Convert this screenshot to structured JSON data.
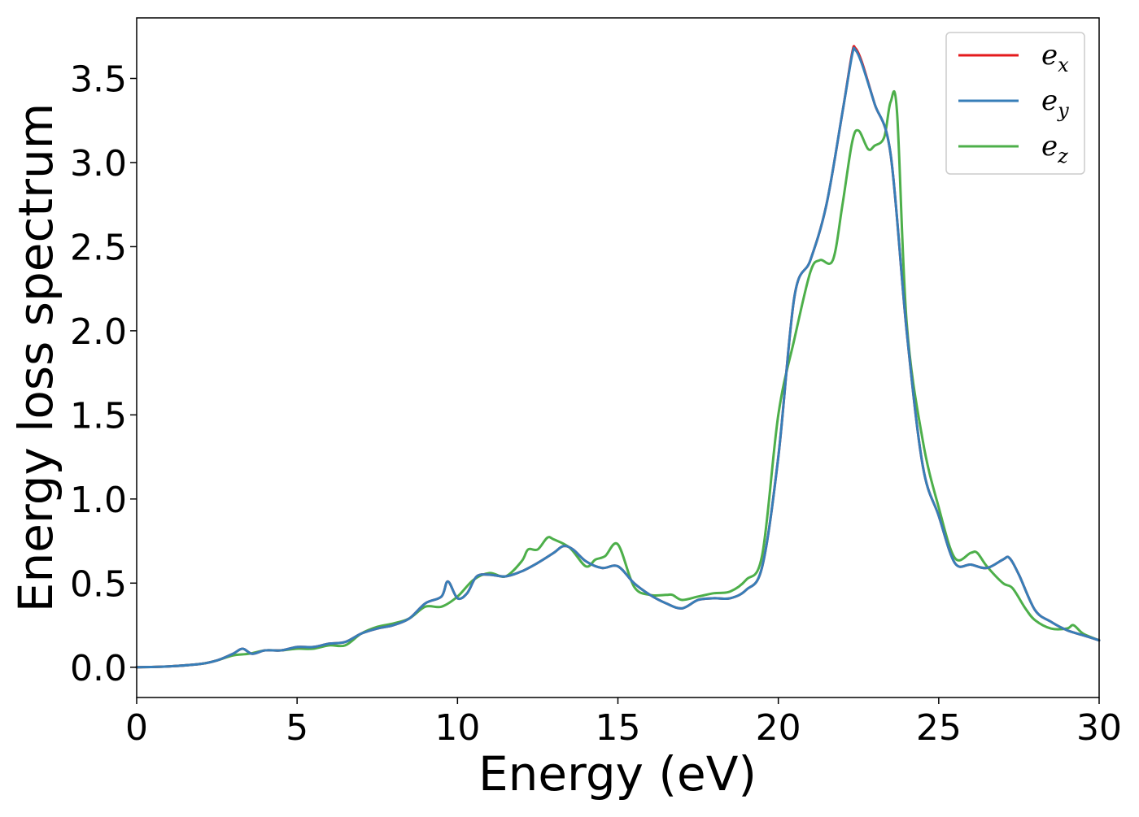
{
  "chart_data": {
    "type": "line",
    "title": "",
    "xlabel": "Energy (eV)",
    "ylabel": "Energy loss spectrum",
    "xlim": [
      0,
      30
    ],
    "ylim": [
      -0.18,
      3.86
    ],
    "xticks": [
      0,
      5,
      10,
      15,
      20,
      25,
      30
    ],
    "xtick_labels": [
      "0",
      "5",
      "10",
      "15",
      "20",
      "25",
      "30"
    ],
    "yticks": [
      0.0,
      0.5,
      1.0,
      1.5,
      2.0,
      2.5,
      3.0,
      3.5
    ],
    "ytick_labels": [
      "0.0",
      "0.5",
      "1.0",
      "1.5",
      "2.0",
      "2.5",
      "3.0",
      "3.5"
    ],
    "grid": false,
    "legend_position": "top-right",
    "series": [
      {
        "name": "e_x",
        "legend_base": "e",
        "legend_sub": "x",
        "color": "#e41a1c",
        "x": [
          0,
          1,
          2,
          2.5,
          3,
          3.3,
          3.6,
          4,
          4.5,
          5,
          5.5,
          6,
          6.5,
          7,
          7.5,
          8,
          8.5,
          9,
          9.5,
          9.7,
          10,
          10.3,
          10.6,
          11,
          11.5,
          12,
          12.5,
          13,
          13.3,
          13.6,
          14,
          14.5,
          15,
          15.5,
          16,
          16.5,
          17,
          17.5,
          18,
          18.5,
          19,
          19.5,
          20,
          20.5,
          21,
          21.5,
          22,
          22.3,
          22.4,
          22.6,
          23,
          23.5,
          24,
          24.5,
          25,
          25.5,
          26,
          26.5,
          27,
          27.2,
          27.5,
          28,
          28.5,
          29,
          29.5,
          30
        ],
        "y": [
          0,
          0.005,
          0.02,
          0.04,
          0.08,
          0.11,
          0.08,
          0.1,
          0.1,
          0.12,
          0.12,
          0.14,
          0.15,
          0.2,
          0.23,
          0.25,
          0.29,
          0.38,
          0.42,
          0.51,
          0.41,
          0.44,
          0.54,
          0.55,
          0.54,
          0.57,
          0.62,
          0.68,
          0.72,
          0.7,
          0.63,
          0.59,
          0.6,
          0.5,
          0.43,
          0.38,
          0.35,
          0.4,
          0.41,
          0.41,
          0.46,
          0.6,
          1.25,
          2.2,
          2.42,
          2.75,
          3.3,
          3.65,
          3.68,
          3.6,
          3.35,
          3.05,
          2.0,
          1.2,
          0.9,
          0.62,
          0.61,
          0.59,
          0.64,
          0.65,
          0.55,
          0.34,
          0.27,
          0.22,
          0.19,
          0.16
        ]
      },
      {
        "name": "e_y",
        "legend_base": "e",
        "legend_sub": "y",
        "color": "#377eb8",
        "x": [
          0,
          1,
          2,
          2.5,
          3,
          3.3,
          3.6,
          4,
          4.5,
          5,
          5.5,
          6,
          6.5,
          7,
          7.5,
          8,
          8.5,
          9,
          9.5,
          9.7,
          10,
          10.3,
          10.6,
          11,
          11.5,
          12,
          12.5,
          13,
          13.3,
          13.6,
          14,
          14.5,
          15,
          15.5,
          16,
          16.5,
          17,
          17.5,
          18,
          18.5,
          19,
          19.5,
          20,
          20.5,
          21,
          21.5,
          22,
          22.3,
          22.4,
          22.6,
          23,
          23.5,
          24,
          24.5,
          25,
          25.5,
          26,
          26.5,
          27,
          27.2,
          27.5,
          28,
          28.5,
          29,
          29.5,
          30
        ],
        "y": [
          0,
          0.005,
          0.02,
          0.04,
          0.08,
          0.11,
          0.08,
          0.1,
          0.1,
          0.12,
          0.12,
          0.14,
          0.15,
          0.2,
          0.23,
          0.25,
          0.29,
          0.38,
          0.42,
          0.51,
          0.41,
          0.44,
          0.54,
          0.55,
          0.54,
          0.57,
          0.62,
          0.68,
          0.72,
          0.7,
          0.63,
          0.59,
          0.6,
          0.5,
          0.43,
          0.38,
          0.35,
          0.4,
          0.41,
          0.41,
          0.46,
          0.6,
          1.25,
          2.2,
          2.42,
          2.75,
          3.3,
          3.64,
          3.67,
          3.59,
          3.35,
          3.05,
          2.0,
          1.2,
          0.9,
          0.62,
          0.61,
          0.59,
          0.64,
          0.65,
          0.55,
          0.34,
          0.27,
          0.22,
          0.19,
          0.16
        ]
      },
      {
        "name": "e_z",
        "legend_base": "e",
        "legend_sub": "z",
        "color": "#4daf4a",
        "x": [
          0,
          1,
          2,
          2.5,
          3,
          3.5,
          4,
          4.5,
          5,
          5.5,
          6,
          6.5,
          7,
          7.5,
          8,
          8.5,
          9,
          9.5,
          10,
          10.5,
          11,
          11.5,
          12,
          12.2,
          12.5,
          12.8,
          13,
          13.5,
          14,
          14.3,
          14.6,
          15,
          15.5,
          16,
          16.5,
          16.7,
          17,
          17.5,
          18,
          18.5,
          19,
          19.5,
          20,
          20.5,
          21,
          21.3,
          21.7,
          22,
          22.3,
          22.5,
          22.8,
          23,
          23.3,
          23.5,
          23.7,
          24,
          24.5,
          25,
          25.5,
          26,
          26.2,
          26.5,
          27,
          27.3,
          27.7,
          28,
          28.5,
          29,
          29.2,
          29.5,
          30
        ],
        "y": [
          0,
          0.005,
          0.02,
          0.04,
          0.07,
          0.08,
          0.1,
          0.1,
          0.11,
          0.11,
          0.13,
          0.13,
          0.2,
          0.24,
          0.26,
          0.29,
          0.36,
          0.36,
          0.42,
          0.52,
          0.56,
          0.54,
          0.63,
          0.7,
          0.7,
          0.77,
          0.76,
          0.71,
          0.6,
          0.64,
          0.66,
          0.73,
          0.48,
          0.43,
          0.43,
          0.43,
          0.4,
          0.42,
          0.44,
          0.45,
          0.52,
          0.67,
          1.5,
          1.95,
          2.35,
          2.42,
          2.42,
          2.75,
          3.12,
          3.19,
          3.08,
          3.1,
          3.15,
          3.36,
          3.3,
          2.05,
          1.35,
          0.95,
          0.65,
          0.68,
          0.68,
          0.6,
          0.5,
          0.47,
          0.35,
          0.28,
          0.23,
          0.23,
          0.25,
          0.2,
          0.16
        ]
      }
    ]
  }
}
